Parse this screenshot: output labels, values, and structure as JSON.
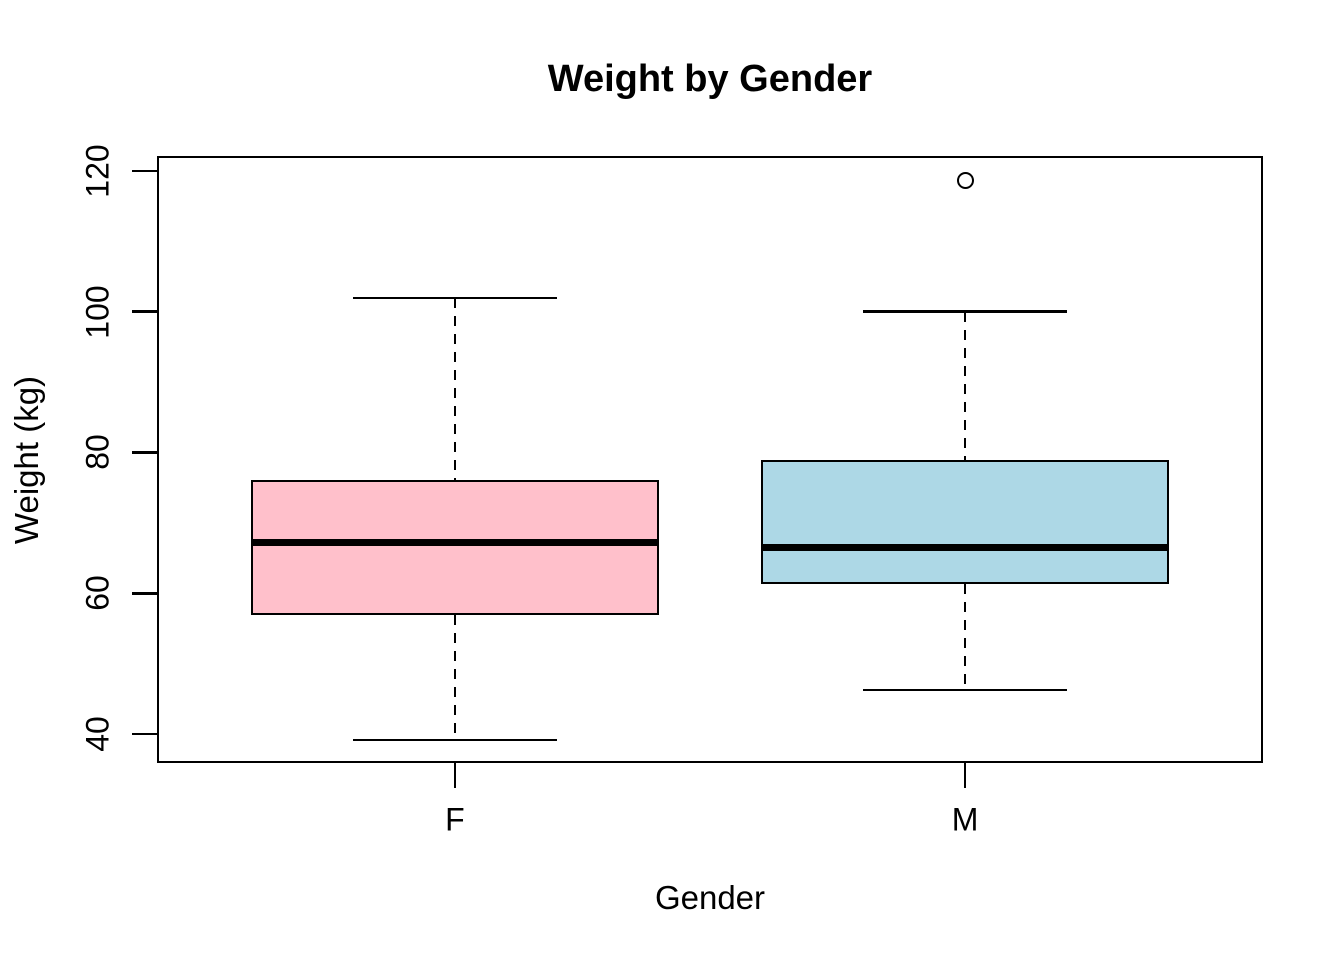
{
  "figure": {
    "background": "#FFFFFF",
    "frame_color": "#000000",
    "text_color": "#000000"
  },
  "chart_data": {
    "type": "boxplot",
    "title": "Weight by Gender",
    "xlabel": "Gender",
    "ylabel": "Weight (kg)",
    "categories": [
      "F",
      "M"
    ],
    "y_ticks": [
      40,
      60,
      80,
      100,
      120
    ],
    "ylim": [
      35.9,
      122.1
    ],
    "xlim": [
      0.416,
      2.584
    ],
    "box_width": 0.8,
    "cap_width": 0.4,
    "grid": false,
    "legend": "none",
    "series": [
      {
        "name": "F",
        "x": 1,
        "fill": "#FFC0CB",
        "whisker_low": 39.2,
        "q1": 56.9,
        "median": 67.2,
        "q3": 76.1,
        "whisker_high": 101.9,
        "outliers": []
      },
      {
        "name": "M",
        "x": 2,
        "fill": "#ADD8E6",
        "whisker_low": 46.3,
        "q1": 61.3,
        "median": 66.5,
        "q3": 78.9,
        "whisker_high": 100.0,
        "outliers": [
          118.6
        ]
      }
    ]
  }
}
